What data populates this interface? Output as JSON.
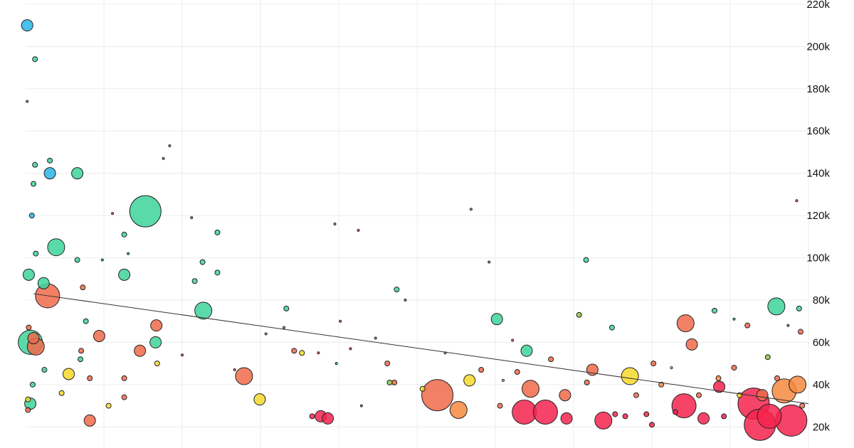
{
  "chart_data": {
    "type": "scatter",
    "title": "",
    "xlabel": "",
    "ylabel": "",
    "ylim": [
      10000,
      222000
    ],
    "xlim": [
      0,
      100
    ],
    "y_ticks": [
      {
        "value": 20000,
        "label": "20k"
      },
      {
        "value": 40000,
        "label": "40k"
      },
      {
        "value": 60000,
        "label": "60k"
      },
      {
        "value": 80000,
        "label": "80k"
      },
      {
        "value": 100000,
        "label": "100k"
      },
      {
        "value": 120000,
        "label": "120k"
      },
      {
        "value": 140000,
        "label": "140k"
      },
      {
        "value": 160000,
        "label": "160k"
      },
      {
        "value": 180000,
        "label": "180k"
      },
      {
        "value": 200000,
        "label": "200k"
      },
      {
        "value": 220000,
        "label": "220k"
      }
    ],
    "x_gridlines": [
      10,
      20,
      30,
      40,
      50,
      60,
      70,
      80,
      90,
      100
    ],
    "grid": true,
    "legend": "none",
    "colors": {
      "blue": "#29b6e8",
      "teal": "#3ed49a",
      "green": "#8cc63e",
      "yellow": "#f7d92a",
      "orange": "#f58a3f",
      "coral": "#f06a4a",
      "red": "#f5234e"
    },
    "trend_line": {
      "x": [
        1,
        100
      ],
      "y": [
        83000,
        31000
      ]
    },
    "points": [
      {
        "x": 0.2,
        "y": 210000,
        "size": 3,
        "color": "blue"
      },
      {
        "x": 1.2,
        "y": 194000,
        "size": 2,
        "color": "teal"
      },
      {
        "x": 0.2,
        "y": 174000,
        "size": 1,
        "color": "blue"
      },
      {
        "x": 3.1,
        "y": 146000,
        "size": 2,
        "color": "teal"
      },
      {
        "x": 1.2,
        "y": 144000,
        "size": 2,
        "color": "teal"
      },
      {
        "x": 3.1,
        "y": 140000,
        "size": 3,
        "color": "blue"
      },
      {
        "x": 6.6,
        "y": 140000,
        "size": 3,
        "color": "teal"
      },
      {
        "x": 1.0,
        "y": 135000,
        "size": 2,
        "color": "teal"
      },
      {
        "x": 0.8,
        "y": 120000,
        "size": 2,
        "color": "blue"
      },
      {
        "x": 15.3,
        "y": 122000,
        "size": 6,
        "color": "teal"
      },
      {
        "x": 12.6,
        "y": 111000,
        "size": 2,
        "color": "teal"
      },
      {
        "x": 24.5,
        "y": 112000,
        "size": 2,
        "color": "teal"
      },
      {
        "x": 3.9,
        "y": 105000,
        "size": 4,
        "color": "teal"
      },
      {
        "x": 1.3,
        "y": 102000,
        "size": 2,
        "color": "teal"
      },
      {
        "x": 6.6,
        "y": 99000,
        "size": 2,
        "color": "teal"
      },
      {
        "x": 9.8,
        "y": 99000,
        "size": 1,
        "color": "teal"
      },
      {
        "x": 22.6,
        "y": 98000,
        "size": 2,
        "color": "teal"
      },
      {
        "x": 12.6,
        "y": 92000,
        "size": 3,
        "color": "teal"
      },
      {
        "x": 24.5,
        "y": 93000,
        "size": 2,
        "color": "teal"
      },
      {
        "x": 21.6,
        "y": 89000,
        "size": 2,
        "color": "teal"
      },
      {
        "x": 0.4,
        "y": 92000,
        "size": 3,
        "color": "teal"
      },
      {
        "x": 2.3,
        "y": 88000,
        "size": 3,
        "color": "teal"
      },
      {
        "x": 2.8,
        "y": 82000,
        "size": 5,
        "color": "coral"
      },
      {
        "x": 7.3,
        "y": 86000,
        "size": 2,
        "color": "coral"
      },
      {
        "x": 22.7,
        "y": 75000,
        "size": 4,
        "color": "teal"
      },
      {
        "x": 7.7,
        "y": 70000,
        "size": 2,
        "color": "teal"
      },
      {
        "x": 16.7,
        "y": 68000,
        "size": 3,
        "color": "coral"
      },
      {
        "x": 0.4,
        "y": 67000,
        "size": 2,
        "color": "coral"
      },
      {
        "x": 0.6,
        "y": 60000,
        "size": 5,
        "color": "teal"
      },
      {
        "x": 1.3,
        "y": 58000,
        "size": 4,
        "color": "coral"
      },
      {
        "x": 1.0,
        "y": 62000,
        "size": 3,
        "color": "coral"
      },
      {
        "x": 9.4,
        "y": 63000,
        "size": 3,
        "color": "coral"
      },
      {
        "x": 16.6,
        "y": 60000,
        "size": 3,
        "color": "teal"
      },
      {
        "x": 14.6,
        "y": 56000,
        "size": 3,
        "color": "coral"
      },
      {
        "x": 7.1,
        "y": 56000,
        "size": 2,
        "color": "coral"
      },
      {
        "x": 7.0,
        "y": 52000,
        "size": 2,
        "color": "teal"
      },
      {
        "x": 16.8,
        "y": 50000,
        "size": 2,
        "color": "yellow"
      },
      {
        "x": 2.4,
        "y": 47000,
        "size": 2,
        "color": "teal"
      },
      {
        "x": 5.5,
        "y": 45000,
        "size": 3,
        "color": "yellow"
      },
      {
        "x": 27.9,
        "y": 44000,
        "size": 4,
        "color": "coral"
      },
      {
        "x": 12.6,
        "y": 43000,
        "size": 2,
        "color": "coral"
      },
      {
        "x": 8.2,
        "y": 43000,
        "size": 2,
        "color": "coral"
      },
      {
        "x": 0.9,
        "y": 40000,
        "size": 2,
        "color": "teal"
      },
      {
        "x": 4.6,
        "y": 36000,
        "size": 2,
        "color": "yellow"
      },
      {
        "x": 12.6,
        "y": 34000,
        "size": 2,
        "color": "coral"
      },
      {
        "x": 29.9,
        "y": 33000,
        "size": 3,
        "color": "yellow"
      },
      {
        "x": 0.6,
        "y": 31000,
        "size": 3,
        "color": "teal"
      },
      {
        "x": 0.3,
        "y": 33000,
        "size": 2,
        "color": "yellow"
      },
      {
        "x": 10.6,
        "y": 30000,
        "size": 2,
        "color": "yellow"
      },
      {
        "x": 0.3,
        "y": 28000,
        "size": 2,
        "color": "coral"
      },
      {
        "x": 8.2,
        "y": 23000,
        "size": 3,
        "color": "coral"
      },
      {
        "x": 34.3,
        "y": 56000,
        "size": 2,
        "color": "coral"
      },
      {
        "x": 35.3,
        "y": 55000,
        "size": 2,
        "color": "yellow"
      },
      {
        "x": 33.3,
        "y": 76000,
        "size": 2,
        "color": "teal"
      },
      {
        "x": 37.4,
        "y": 55000,
        "size": 1,
        "color": "coral"
      },
      {
        "x": 41.5,
        "y": 57000,
        "size": 1,
        "color": "coral"
      },
      {
        "x": 46.2,
        "y": 50000,
        "size": 2,
        "color": "coral"
      },
      {
        "x": 47.1,
        "y": 41000,
        "size": 2,
        "color": "coral"
      },
      {
        "x": 47.4,
        "y": 85000,
        "size": 2,
        "color": "teal"
      },
      {
        "x": 33.0,
        "y": 67000,
        "size": 1,
        "color": "teal"
      },
      {
        "x": 36.6,
        "y": 25000,
        "size": 2,
        "color": "red"
      },
      {
        "x": 37.7,
        "y": 25000,
        "size": 3,
        "color": "red"
      },
      {
        "x": 38.6,
        "y": 24000,
        "size": 3,
        "color": "red"
      },
      {
        "x": 42.9,
        "y": 30000,
        "size": 1,
        "color": "coral"
      },
      {
        "x": 46.5,
        "y": 41000,
        "size": 2,
        "color": "green"
      },
      {
        "x": 50.7,
        "y": 38000,
        "size": 2,
        "color": "yellow"
      },
      {
        "x": 52.6,
        "y": 35000,
        "size": 6,
        "color": "coral"
      },
      {
        "x": 55.3,
        "y": 28000,
        "size": 4,
        "color": "orange"
      },
      {
        "x": 56.7,
        "y": 42000,
        "size": 3,
        "color": "yellow"
      },
      {
        "x": 56.9,
        "y": 123000,
        "size": 1,
        "color": "teal"
      },
      {
        "x": 58.2,
        "y": 47000,
        "size": 2,
        "color": "coral"
      },
      {
        "x": 60.2,
        "y": 71000,
        "size": 3,
        "color": "teal"
      },
      {
        "x": 64.5,
        "y": 38000,
        "size": 4,
        "color": "coral"
      },
      {
        "x": 63.7,
        "y": 27000,
        "size": 5,
        "color": "red"
      },
      {
        "x": 64.0,
        "y": 56000,
        "size": 3,
        "color": "teal"
      },
      {
        "x": 66.4,
        "y": 27000,
        "size": 5,
        "color": "red"
      },
      {
        "x": 67.1,
        "y": 52000,
        "size": 2,
        "color": "coral"
      },
      {
        "x": 68.9,
        "y": 35000,
        "size": 3,
        "color": "coral"
      },
      {
        "x": 69.1,
        "y": 24000,
        "size": 3,
        "color": "red"
      },
      {
        "x": 71.6,
        "y": 99000,
        "size": 2,
        "color": "teal"
      },
      {
        "x": 72.4,
        "y": 47000,
        "size": 3,
        "color": "coral"
      },
      {
        "x": 73.8,
        "y": 23000,
        "size": 4,
        "color": "red"
      },
      {
        "x": 77.2,
        "y": 44000,
        "size": 4,
        "color": "yellow"
      },
      {
        "x": 78.0,
        "y": 35000,
        "size": 2,
        "color": "coral"
      },
      {
        "x": 76.6,
        "y": 25000,
        "size": 2,
        "color": "red"
      },
      {
        "x": 80.0,
        "y": 21000,
        "size": 2,
        "color": "red"
      },
      {
        "x": 84.3,
        "y": 69000,
        "size": 4,
        "color": "coral"
      },
      {
        "x": 85.1,
        "y": 59000,
        "size": 3,
        "color": "coral"
      },
      {
        "x": 84.1,
        "y": 30000,
        "size": 5,
        "color": "red"
      },
      {
        "x": 86.6,
        "y": 24000,
        "size": 3,
        "color": "red"
      },
      {
        "x": 88.6,
        "y": 39000,
        "size": 3,
        "color": "red"
      },
      {
        "x": 92.2,
        "y": 68000,
        "size": 2,
        "color": "coral"
      },
      {
        "x": 93.0,
        "y": 31000,
        "size": 6,
        "color": "red"
      },
      {
        "x": 93.8,
        "y": 21000,
        "size": 6,
        "color": "red"
      },
      {
        "x": 94.1,
        "y": 35000,
        "size": 3,
        "color": "coral"
      },
      {
        "x": 95.0,
        "y": 25000,
        "size": 5,
        "color": "red"
      },
      {
        "x": 95.9,
        "y": 77000,
        "size": 4,
        "color": "teal"
      },
      {
        "x": 96.0,
        "y": 43000,
        "size": 2,
        "color": "coral"
      },
      {
        "x": 96.9,
        "y": 37000,
        "size": 5,
        "color": "orange"
      },
      {
        "x": 97.8,
        "y": 23000,
        "size": 6,
        "color": "red"
      },
      {
        "x": 98.6,
        "y": 40000,
        "size": 4,
        "color": "orange"
      },
      {
        "x": 98.8,
        "y": 76000,
        "size": 2,
        "color": "teal"
      },
      {
        "x": 99.0,
        "y": 65000,
        "size": 2,
        "color": "coral"
      },
      {
        "x": 99.2,
        "y": 30000,
        "size": 2,
        "color": "coral"
      },
      {
        "x": 97.4,
        "y": 68000,
        "size": 1,
        "color": "coral"
      },
      {
        "x": 94.8,
        "y": 53000,
        "size": 2,
        "color": "green"
      },
      {
        "x": 90.5,
        "y": 48000,
        "size": 2,
        "color": "coral"
      },
      {
        "x": 91.2,
        "y": 35000,
        "size": 2,
        "color": "yellow"
      },
      {
        "x": 86.0,
        "y": 35000,
        "size": 2,
        "color": "coral"
      },
      {
        "x": 82.5,
        "y": 48000,
        "size": 1,
        "color": "yellow"
      },
      {
        "x": 80.2,
        "y": 50000,
        "size": 2,
        "color": "coral"
      },
      {
        "x": 74.9,
        "y": 67000,
        "size": 2,
        "color": "teal"
      },
      {
        "x": 71.7,
        "y": 41000,
        "size": 2,
        "color": "coral"
      },
      {
        "x": 70.7,
        "y": 73000,
        "size": 2,
        "color": "green"
      },
      {
        "x": 62.8,
        "y": 46000,
        "size": 2,
        "color": "coral"
      },
      {
        "x": 62.2,
        "y": 61000,
        "size": 1,
        "color": "coral"
      },
      {
        "x": 59.2,
        "y": 98000,
        "size": 1,
        "color": "coral"
      },
      {
        "x": 53.6,
        "y": 55000,
        "size": 1,
        "color": "green"
      },
      {
        "x": 48.5,
        "y": 80000,
        "size": 1,
        "color": "coral"
      },
      {
        "x": 44.7,
        "y": 62000,
        "size": 1,
        "color": "teal"
      },
      {
        "x": 40.2,
        "y": 70000,
        "size": 1,
        "color": "coral"
      },
      {
        "x": 39.7,
        "y": 50000,
        "size": 1,
        "color": "teal"
      },
      {
        "x": 30.7,
        "y": 64000,
        "size": 1,
        "color": "teal"
      },
      {
        "x": 26.7,
        "y": 47000,
        "size": 1,
        "color": "coral"
      },
      {
        "x": 20.0,
        "y": 54000,
        "size": 1,
        "color": "coral"
      },
      {
        "x": 18.4,
        "y": 153000,
        "size": 1,
        "color": "teal"
      },
      {
        "x": 17.6,
        "y": 147000,
        "size": 1,
        "color": "teal"
      },
      {
        "x": 21.2,
        "y": 119000,
        "size": 1,
        "color": "teal"
      },
      {
        "x": 13.1,
        "y": 102000,
        "size": 1,
        "color": "blue"
      },
      {
        "x": 11.1,
        "y": 121000,
        "size": 1,
        "color": "coral"
      },
      {
        "x": 39.5,
        "y": 116000,
        "size": 1,
        "color": "teal"
      },
      {
        "x": 42.5,
        "y": 113000,
        "size": 1,
        "color": "coral"
      },
      {
        "x": 98.5,
        "y": 127000,
        "size": 1,
        "color": "coral"
      },
      {
        "x": 88.0,
        "y": 75000,
        "size": 2,
        "color": "teal"
      },
      {
        "x": 90.5,
        "y": 71000,
        "size": 1,
        "color": "teal"
      },
      {
        "x": 88.5,
        "y": 43000,
        "size": 2,
        "color": "orange"
      },
      {
        "x": 89.2,
        "y": 25000,
        "size": 2,
        "color": "red"
      },
      {
        "x": 83.0,
        "y": 27000,
        "size": 2,
        "color": "red"
      },
      {
        "x": 81.2,
        "y": 40000,
        "size": 2,
        "color": "orange"
      },
      {
        "x": 79.3,
        "y": 26000,
        "size": 2,
        "color": "red"
      },
      {
        "x": 75.3,
        "y": 26000,
        "size": 2,
        "color": "red"
      },
      {
        "x": 61.0,
        "y": 42000,
        "size": 1,
        "color": "yellow"
      },
      {
        "x": 60.6,
        "y": 30000,
        "size": 2,
        "color": "coral"
      }
    ]
  }
}
